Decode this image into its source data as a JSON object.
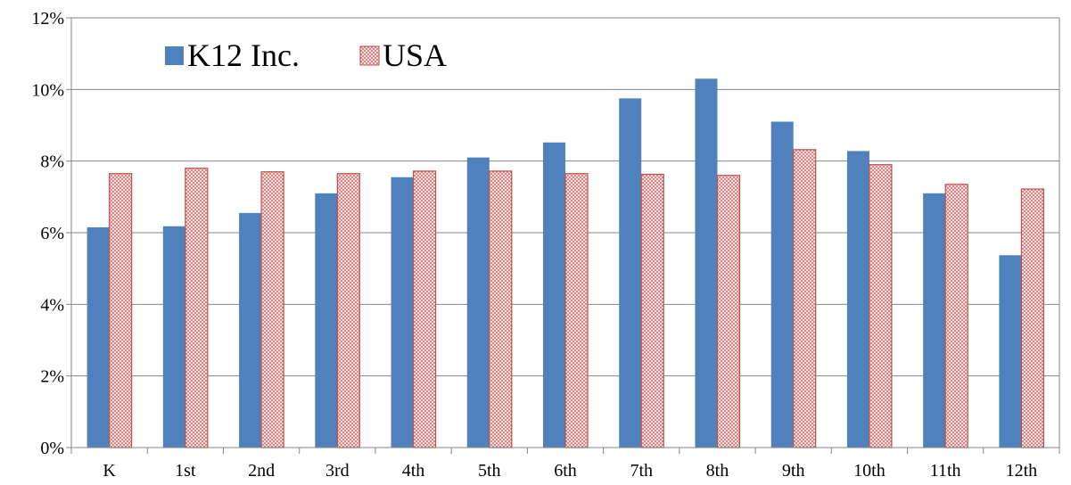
{
  "chart_data": {
    "type": "bar",
    "categories": [
      "K",
      "1st",
      "2nd",
      "3rd",
      "4th",
      "5th",
      "6th",
      "7th",
      "8th",
      "9th",
      "10th",
      "11th",
      "12th"
    ],
    "series": [
      {
        "name": "K12 Inc.",
        "color": "#4f81bd",
        "values": [
          6.15,
          6.18,
          6.55,
          7.1,
          7.55,
          8.1,
          8.52,
          9.75,
          10.3,
          9.1,
          8.28,
          7.1,
          5.37
        ]
      },
      {
        "name": "USA",
        "color": "#c0504d",
        "pattern": "dotted",
        "values": [
          7.65,
          7.8,
          7.7,
          7.65,
          7.72,
          7.72,
          7.65,
          7.63,
          7.6,
          8.32,
          7.9,
          7.35,
          7.22
        ]
      }
    ],
    "ylim": [
      0,
      12
    ],
    "yticks": [
      0,
      2,
      4,
      6,
      8,
      10,
      12
    ],
    "ytick_labels": [
      "0%",
      "2%",
      "4%",
      "6%",
      "8%",
      "10%",
      "12%"
    ],
    "grid": true,
    "legend_position": "top-left"
  }
}
